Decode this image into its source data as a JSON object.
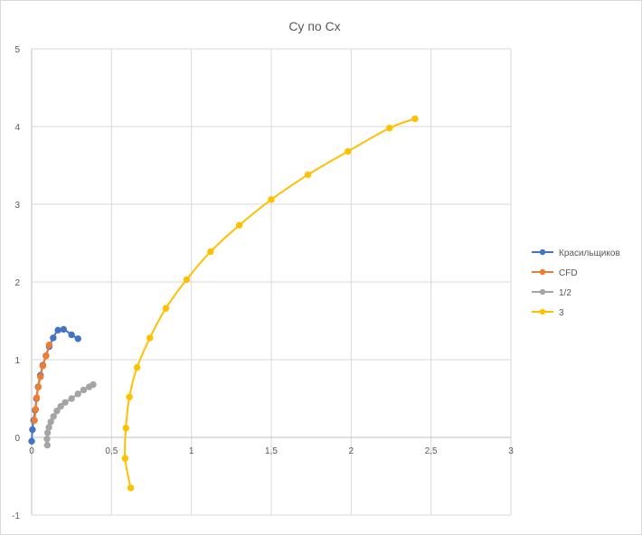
{
  "chart_data": {
    "type": "scatter",
    "title": "Cy по Cx",
    "xlabel": "",
    "ylabel": "",
    "xlim": [
      0,
      3
    ],
    "ylim": [
      -1,
      5
    ],
    "x_ticks": [
      "0",
      "0,5",
      "1",
      "1,5",
      "2",
      "2,5",
      "3"
    ],
    "y_ticks": [
      "-1",
      "0",
      "1",
      "2",
      "3",
      "4",
      "5"
    ],
    "grid": true,
    "legend_position": "right",
    "series": [
      {
        "name": "Красильщиков",
        "color": "#4472c4",
        "points": [
          {
            "x": 0.0,
            "y": -0.05
          },
          {
            "x": 0.005,
            "y": 0.1
          },
          {
            "x": 0.012,
            "y": 0.22
          },
          {
            "x": 0.022,
            "y": 0.35
          },
          {
            "x": 0.03,
            "y": 0.5
          },
          {
            "x": 0.04,
            "y": 0.65
          },
          {
            "x": 0.055,
            "y": 0.8
          },
          {
            "x": 0.07,
            "y": 0.93
          },
          {
            "x": 0.09,
            "y": 1.05
          },
          {
            "x": 0.11,
            "y": 1.17
          },
          {
            "x": 0.135,
            "y": 1.28
          },
          {
            "x": 0.165,
            "y": 1.38
          },
          {
            "x": 0.2,
            "y": 1.39
          },
          {
            "x": 0.25,
            "y": 1.32
          },
          {
            "x": 0.29,
            "y": 1.27
          }
        ]
      },
      {
        "name": "CFD",
        "color": "#ed7d31",
        "points": [
          {
            "x": 0.018,
            "y": 0.22
          },
          {
            "x": 0.025,
            "y": 0.36
          },
          {
            "x": 0.032,
            "y": 0.51
          },
          {
            "x": 0.042,
            "y": 0.65
          },
          {
            "x": 0.055,
            "y": 0.78
          },
          {
            "x": 0.07,
            "y": 0.92
          },
          {
            "x": 0.09,
            "y": 1.05
          },
          {
            "x": 0.11,
            "y": 1.19
          }
        ]
      },
      {
        "name": "1/2",
        "color": "#a5a5a5",
        "points": [
          {
            "x": 0.098,
            "y": -0.1
          },
          {
            "x": 0.096,
            "y": -0.02
          },
          {
            "x": 0.1,
            "y": 0.06
          },
          {
            "x": 0.108,
            "y": 0.13
          },
          {
            "x": 0.12,
            "y": 0.2
          },
          {
            "x": 0.137,
            "y": 0.27
          },
          {
            "x": 0.158,
            "y": 0.34
          },
          {
            "x": 0.182,
            "y": 0.4
          },
          {
            "x": 0.21,
            "y": 0.45
          },
          {
            "x": 0.25,
            "y": 0.5
          },
          {
            "x": 0.29,
            "y": 0.56
          },
          {
            "x": 0.325,
            "y": 0.61
          },
          {
            "x": 0.36,
            "y": 0.65
          },
          {
            "x": 0.385,
            "y": 0.68
          }
        ]
      },
      {
        "name": "3",
        "color": "#ffc000",
        "points": [
          {
            "x": 0.62,
            "y": -0.65
          },
          {
            "x": 0.585,
            "y": -0.27
          },
          {
            "x": 0.59,
            "y": 0.12
          },
          {
            "x": 0.612,
            "y": 0.52
          },
          {
            "x": 0.66,
            "y": 0.9
          },
          {
            "x": 0.74,
            "y": 1.28
          },
          {
            "x": 0.84,
            "y": 1.66
          },
          {
            "x": 0.97,
            "y": 2.03
          },
          {
            "x": 1.12,
            "y": 2.39
          },
          {
            "x": 1.3,
            "y": 2.73
          },
          {
            "x": 1.5,
            "y": 3.06
          },
          {
            "x": 1.73,
            "y": 3.38
          },
          {
            "x": 1.98,
            "y": 3.68
          },
          {
            "x": 2.24,
            "y": 3.98
          },
          {
            "x": 2.4,
            "y": 4.1
          }
        ]
      }
    ]
  }
}
